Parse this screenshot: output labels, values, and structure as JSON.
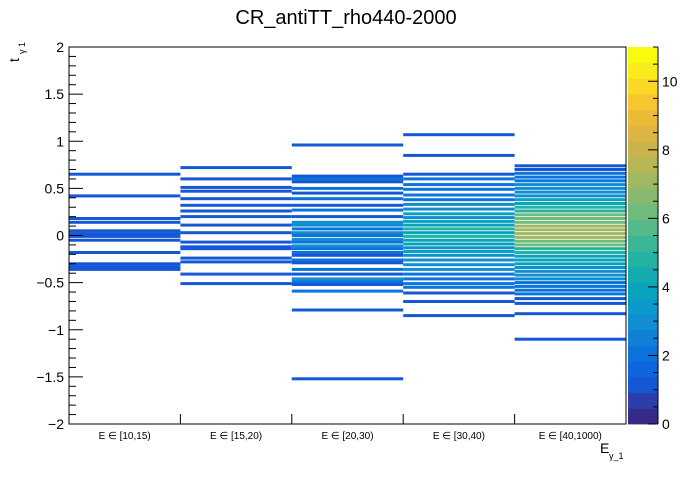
{
  "chart_data": {
    "type": "heatmap",
    "title": "CR_antiTT_rho440-2000",
    "xlabel": "E",
    "xlabel_sub": "γ_1",
    "ylabel": "t",
    "ylabel_sub": "γ 1",
    "categories": [
      "E ∈ [10,15)",
      "E ∈ [15,20)",
      "E ∈ [20,30)",
      "E ∈ [30,40)",
      "E ∈ [40,1000)"
    ],
    "ylim": [
      -2,
      2
    ],
    "y_ticks": [
      "−2",
      "−1.5",
      "−1",
      "−0.5",
      "0",
      "0.5",
      "1",
      "1.5",
      "2"
    ],
    "y_tick_values": [
      -2,
      -1.5,
      -1,
      -0.5,
      0,
      0.5,
      1,
      1.5,
      2
    ],
    "colorbar": {
      "range": [
        0,
        11
      ],
      "ticks": [
        "0",
        "2",
        "4",
        "6",
        "8",
        "10"
      ],
      "tick_values": [
        0,
        2,
        4,
        6,
        8,
        10
      ],
      "palette": [
        "#352a87",
        "#2b3ea9",
        "#1558d6",
        "#0d66dd",
        "#0b74dc",
        "#0f81d6",
        "#0f8ed2",
        "#0b9ac9",
        "#08a3bd",
        "#12abb0",
        "#24b2a2",
        "#3ab696",
        "#55b989",
        "#6fba7d",
        "#88b970",
        "#9fb863",
        "#b6b657",
        "#cab34d",
        "#ddb542",
        "#edba38",
        "#f7c52e",
        "#fbd825",
        "#f9ec1a",
        "#f9fb0e"
      ]
    },
    "bins": [
      {
        "category": "E ∈ [10,15)",
        "cells": [
          [
            0.65,
            1
          ],
          [
            0.42,
            1
          ],
          [
            0.18,
            1
          ],
          [
            0.14,
            1
          ],
          [
            0.05,
            1
          ],
          [
            0.02,
            1
          ],
          [
            -0.01,
            1
          ],
          [
            -0.05,
            1
          ],
          [
            -0.18,
            1
          ],
          [
            -0.3,
            1
          ],
          [
            -0.33,
            1
          ],
          [
            -0.36,
            1
          ]
        ]
      },
      {
        "category": "E ∈ [15,20)",
        "cells": [
          [
            0.72,
            1
          ],
          [
            0.6,
            1
          ],
          [
            0.51,
            1
          ],
          [
            0.47,
            1
          ],
          [
            0.39,
            1
          ],
          [
            0.32,
            1
          ],
          [
            0.26,
            1
          ],
          [
            0.2,
            1
          ],
          [
            0.11,
            1
          ],
          [
            0.03,
            1
          ],
          [
            -0.07,
            1
          ],
          [
            -0.12,
            1
          ],
          [
            -0.14,
            1
          ],
          [
            -0.24,
            1
          ],
          [
            -0.28,
            1
          ],
          [
            -0.41,
            1
          ],
          [
            -0.51,
            1
          ]
        ]
      },
      {
        "category": "E ∈ [20,30)",
        "cells": [
          [
            0.96,
            1
          ],
          [
            0.63,
            1
          ],
          [
            0.6,
            2
          ],
          [
            0.57,
            1
          ],
          [
            0.5,
            2
          ],
          [
            0.45,
            1
          ],
          [
            0.39,
            2
          ],
          [
            0.32,
            1
          ],
          [
            0.27,
            2
          ],
          [
            0.2,
            1
          ],
          [
            0.14,
            3
          ],
          [
            0.11,
            3
          ],
          [
            0.07,
            2
          ],
          [
            0.03,
            3
          ],
          [
            0.0,
            2
          ],
          [
            -0.04,
            3
          ],
          [
            -0.07,
            2
          ],
          [
            -0.11,
            3
          ],
          [
            -0.14,
            2
          ],
          [
            -0.18,
            2
          ],
          [
            -0.21,
            1
          ],
          [
            -0.26,
            2
          ],
          [
            -0.29,
            1
          ],
          [
            -0.36,
            2
          ],
          [
            -0.41,
            1
          ],
          [
            -0.46,
            3
          ],
          [
            -0.49,
            2
          ],
          [
            -0.52,
            1
          ],
          [
            -0.59,
            2
          ],
          [
            -0.79,
            1
          ],
          [
            -1.52,
            1
          ]
        ]
      },
      {
        "category": "E ∈ [30,40)",
        "cells": [
          [
            1.07,
            1
          ],
          [
            0.85,
            1
          ],
          [
            0.65,
            1
          ],
          [
            0.6,
            2
          ],
          [
            0.54,
            2
          ],
          [
            0.49,
            2
          ],
          [
            0.43,
            2
          ],
          [
            0.38,
            2
          ],
          [
            0.33,
            3
          ],
          [
            0.28,
            3
          ],
          [
            0.23,
            4
          ],
          [
            0.19,
            3
          ],
          [
            0.15,
            4
          ],
          [
            0.11,
            4
          ],
          [
            0.07,
            5
          ],
          [
            0.03,
            4
          ],
          [
            -0.01,
            5
          ],
          [
            -0.05,
            4
          ],
          [
            -0.09,
            4
          ],
          [
            -0.13,
            3
          ],
          [
            -0.17,
            4
          ],
          [
            -0.21,
            3
          ],
          [
            -0.26,
            3
          ],
          [
            -0.31,
            3
          ],
          [
            -0.36,
            3
          ],
          [
            -0.41,
            2
          ],
          [
            -0.46,
            2
          ],
          [
            -0.51,
            2
          ],
          [
            -0.55,
            2
          ],
          [
            -0.61,
            1
          ],
          [
            -0.7,
            1
          ],
          [
            -0.85,
            1
          ]
        ]
      },
      {
        "category": "E ∈ [40,1000)",
        "cells": [
          [
            0.74,
            1
          ],
          [
            0.7,
            1
          ],
          [
            0.66,
            2
          ],
          [
            0.62,
            2
          ],
          [
            0.58,
            2
          ],
          [
            0.54,
            3
          ],
          [
            0.5,
            3
          ],
          [
            0.46,
            3
          ],
          [
            0.42,
            3
          ],
          [
            0.38,
            4
          ],
          [
            0.34,
            4
          ],
          [
            0.3,
            5
          ],
          [
            0.26,
            5
          ],
          [
            0.22,
            6
          ],
          [
            0.18,
            6
          ],
          [
            0.14,
            6
          ],
          [
            0.1,
            7
          ],
          [
            0.06,
            7
          ],
          [
            0.02,
            7
          ],
          [
            -0.02,
            7
          ],
          [
            -0.06,
            6
          ],
          [
            -0.1,
            6
          ],
          [
            -0.14,
            5
          ],
          [
            -0.18,
            5
          ],
          [
            -0.22,
            4
          ],
          [
            -0.26,
            4
          ],
          [
            -0.3,
            4
          ],
          [
            -0.34,
            3
          ],
          [
            -0.38,
            3
          ],
          [
            -0.42,
            3
          ],
          [
            -0.46,
            3
          ],
          [
            -0.5,
            2
          ],
          [
            -0.54,
            2
          ],
          [
            -0.58,
            2
          ],
          [
            -0.62,
            2
          ],
          [
            -0.67,
            1
          ],
          [
            -0.72,
            1
          ],
          [
            -0.83,
            1
          ],
          [
            -1.1,
            1
          ]
        ]
      }
    ]
  }
}
